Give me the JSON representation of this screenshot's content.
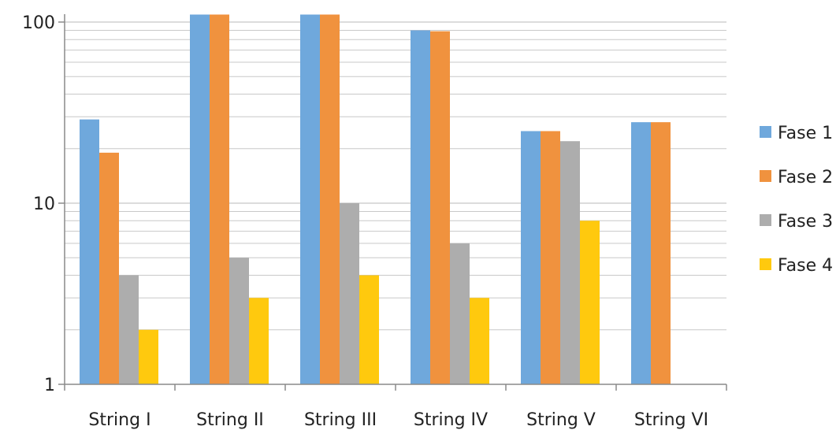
{
  "chart_data": {
    "type": "bar",
    "yscale": "log",
    "ylim": [
      1,
      100
    ],
    "yticks": [
      {
        "value": 1,
        "label": "1"
      },
      {
        "value": 10,
        "label": "10"
      },
      {
        "value": 100,
        "label": "100"
      }
    ],
    "grid": true,
    "legend_position": "right",
    "categories": [
      "String I",
      "String II",
      "String III",
      "String IV",
      "String V",
      "String VI"
    ],
    "series": [
      {
        "name": "Fase 1",
        "color": "#6fa8dc",
        "values": [
          29,
          110,
          110,
          90,
          25,
          28
        ]
      },
      {
        "name": "Fase 2",
        "color": "#f0923e",
        "values": [
          19,
          110,
          110,
          89,
          25,
          28
        ]
      },
      {
        "name": "Fase 3",
        "color": "#adadad",
        "values": [
          4,
          5,
          10,
          6,
          22,
          null
        ]
      },
      {
        "name": "Fase 4",
        "color": "#ffc90e",
        "values": [
          2,
          3,
          4,
          3,
          8,
          null
        ]
      }
    ]
  }
}
